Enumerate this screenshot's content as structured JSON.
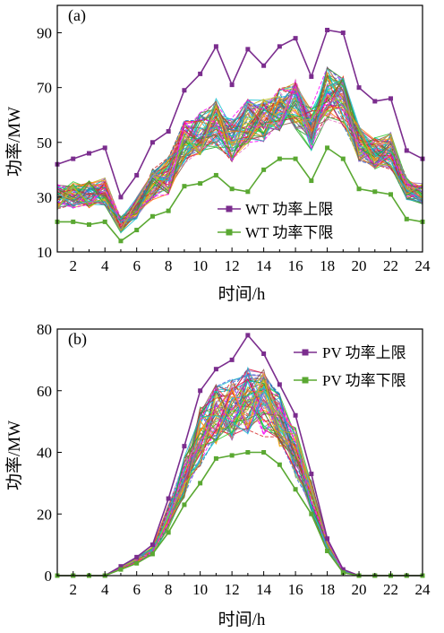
{
  "chart_data": [
    {
      "type": "line",
      "panel_label": "(a)",
      "xlabel": "时间/h",
      "ylabel": "功率/MW",
      "xlim": [
        1,
        24
      ],
      "ylim": [
        10,
        100
      ],
      "xticks": [
        2,
        4,
        6,
        8,
        10,
        12,
        14,
        16,
        18,
        20,
        22,
        24
      ],
      "yticks": [
        10,
        30,
        50,
        70,
        90
      ],
      "x": [
        1,
        2,
        3,
        4,
        5,
        6,
        7,
        8,
        9,
        10,
        11,
        12,
        13,
        14,
        15,
        16,
        17,
        18,
        19,
        20,
        21,
        22,
        23,
        24
      ],
      "series": [
        {
          "name": "WT 功率上限",
          "color": "#7b2d8e",
          "values": [
            42,
            44,
            46,
            48,
            30,
            38,
            50,
            54,
            69,
            75,
            85,
            71,
            84,
            78,
            85,
            88,
            74,
            91,
            90,
            70,
            65,
            66,
            47,
            44
          ]
        },
        {
          "name": "WT 功率下限",
          "color": "#5aa832",
          "values": [
            21,
            21,
            20,
            21,
            14,
            18,
            23,
            25,
            34,
            35,
            38,
            33,
            32,
            40,
            44,
            44,
            36,
            48,
            44,
            33,
            32,
            31,
            22,
            21
          ]
        }
      ],
      "envelope_center": [
        30,
        31,
        31,
        32,
        20,
        26,
        35,
        38,
        50,
        53,
        57,
        51,
        57,
        58,
        62,
        64,
        55,
        68,
        65,
        50,
        46,
        47,
        33,
        31
      ],
      "envelope_spread": [
        5,
        5,
        5,
        5,
        3,
        4,
        6,
        7,
        8,
        8,
        9,
        8,
        9,
        8,
        8,
        9,
        8,
        10,
        9,
        7,
        6,
        7,
        4,
        4
      ],
      "scenario_count": 70,
      "legend_position": "lower-right",
      "grid": false
    },
    {
      "type": "line",
      "panel_label": "(b)",
      "xlabel": "时间/h",
      "ylabel": "功率/MW",
      "xlim": [
        1,
        24
      ],
      "ylim": [
        0,
        80
      ],
      "xticks": [
        2,
        4,
        6,
        8,
        10,
        12,
        14,
        16,
        18,
        20,
        22,
        24
      ],
      "yticks": [
        0,
        20,
        40,
        60,
        80
      ],
      "x": [
        1,
        2,
        3,
        4,
        5,
        6,
        7,
        8,
        9,
        10,
        11,
        12,
        13,
        14,
        15,
        16,
        17,
        18,
        19,
        20,
        21,
        22,
        23,
        24
      ],
      "series": [
        {
          "name": "PV 功率上限",
          "color": "#7b2d8e",
          "values": [
            0,
            0,
            0,
            0,
            3,
            6,
            10,
            25,
            42,
            60,
            67,
            70,
            78,
            72,
            62,
            52,
            33,
            12,
            2,
            0,
            0,
            0,
            0,
            0
          ]
        },
        {
          "name": "PV 功率下限",
          "color": "#5aa832",
          "values": [
            0,
            0,
            0,
            0,
            2,
            4,
            7,
            14,
            23,
            30,
            38,
            39,
            40,
            40,
            36,
            28,
            20,
            8,
            1,
            0,
            0,
            0,
            0,
            0
          ]
        }
      ],
      "envelope_center": [
        0,
        0,
        0,
        0,
        2.5,
        5,
        8,
        19,
        32,
        45,
        52,
        54,
        57,
        56,
        50,
        40,
        26,
        10,
        1.5,
        0,
        0,
        0,
        0,
        0
      ],
      "envelope_spread": [
        0,
        0,
        0,
        0,
        0.5,
        1,
        1.5,
        4,
        7,
        10,
        10,
        10,
        11,
        11,
        9,
        8,
        5,
        2,
        0.5,
        0,
        0,
        0,
        0,
        0
      ],
      "scenario_count": 70,
      "legend_position": "top-right",
      "grid": false
    }
  ]
}
